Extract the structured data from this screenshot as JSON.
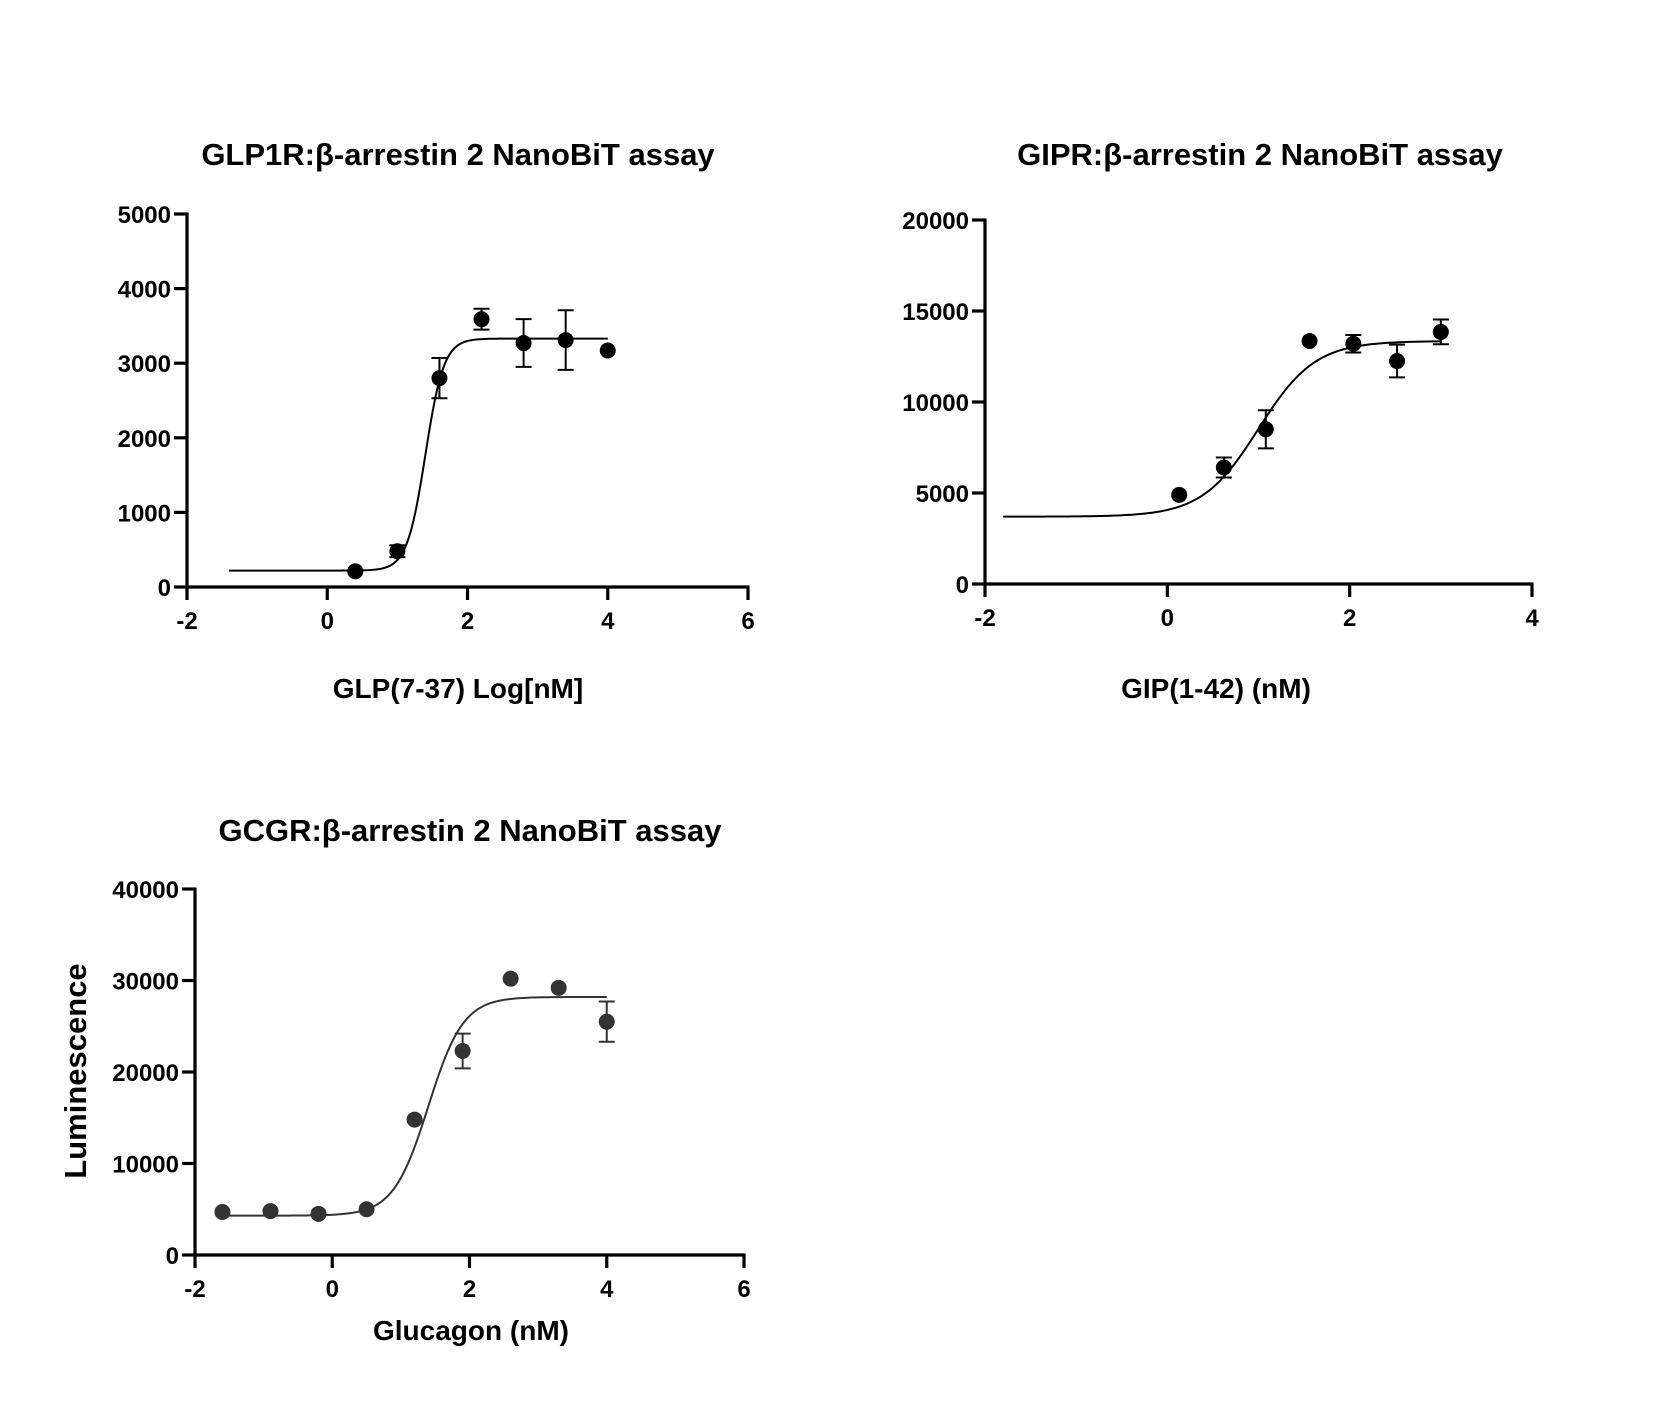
{
  "chart_data": [
    {
      "type": "scatter",
      "title": "GLP1R:β-arrestin 2 NanoBiT assay",
      "xlabel": "GLP(7-37) Log[nM]",
      "ylabel": "",
      "xlim": [
        -2,
        6
      ],
      "ylim": [
        0,
        5000
      ],
      "x_ticks": [
        "-2",
        "0",
        "2",
        "4",
        "6"
      ],
      "y_ticks": [
        "0",
        "1000",
        "2000",
        "3000",
        "4000",
        "5000"
      ],
      "color": "#000000",
      "points": [
        {
          "x": 0.4,
          "y": 210,
          "err": 0
        },
        {
          "x": 1.0,
          "y": 480,
          "err": 80
        },
        {
          "x": 1.6,
          "y": 2800,
          "err": 270
        },
        {
          "x": 2.2,
          "y": 3590,
          "err": 140
        },
        {
          "x": 2.8,
          "y": 3270,
          "err": 320
        },
        {
          "x": 3.4,
          "y": 3310,
          "err": 400
        },
        {
          "x": 4.0,
          "y": 3170,
          "err": 0
        }
      ],
      "fit": {
        "model": "sigmoid",
        "bottom": 220,
        "top": 3330,
        "ec50": 1.4,
        "hill": 3.3,
        "x_range": [
          -1.4,
          4.0
        ]
      }
    },
    {
      "type": "scatter",
      "title": "GIPR:β-arrestin 2 NanoBiT assay",
      "xlabel": "GIP(1-42) (nM)",
      "ylabel": "",
      "xlim": [
        -2,
        4
      ],
      "ylim": [
        0,
        20000
      ],
      "x_ticks": [
        "-2",
        "0",
        "2",
        "4"
      ],
      "y_ticks": [
        "0",
        "5000",
        "10000",
        "15000",
        "20000"
      ],
      "color": "#000000",
      "points": [
        {
          "x": 0.13,
          "y": 4900,
          "err": 0
        },
        {
          "x": 0.62,
          "y": 6400,
          "err": 550
        },
        {
          "x": 1.08,
          "y": 8500,
          "err": 1050
        },
        {
          "x": 1.56,
          "y": 13350,
          "err": 0
        },
        {
          "x": 2.04,
          "y": 13200,
          "err": 480
        },
        {
          "x": 2.52,
          "y": 12250,
          "err": 900
        },
        {
          "x": 3.0,
          "y": 13850,
          "err": 680
        }
      ],
      "fit": {
        "model": "sigmoid",
        "bottom": 3700,
        "top": 13350,
        "ec50": 1.0,
        "hill": 1.4,
        "x_range": [
          -1.8,
          3.0
        ]
      }
    },
    {
      "type": "scatter",
      "title": "GCGR:β-arrestin 2 NanoBiT assay",
      "xlabel": "Glucagon (nM)",
      "ylabel": "Luminescence",
      "xlim": [
        -2,
        6
      ],
      "ylim": [
        0,
        40000
      ],
      "x_ticks": [
        "-2",
        "0",
        "2",
        "4",
        "6"
      ],
      "y_ticks": [
        "0",
        "10000",
        "20000",
        "30000",
        "40000"
      ],
      "color": "#333333",
      "points": [
        {
          "x": -1.6,
          "y": 4700,
          "err": 0
        },
        {
          "x": -0.9,
          "y": 4800,
          "err": 0
        },
        {
          "x": -0.2,
          "y": 4500,
          "err": 0
        },
        {
          "x": 0.5,
          "y": 5000,
          "err": 0
        },
        {
          "x": 1.2,
          "y": 14800,
          "err": 0
        },
        {
          "x": 1.9,
          "y": 22300,
          "err": 1900
        },
        {
          "x": 2.6,
          "y": 30200,
          "err": 0
        },
        {
          "x": 3.3,
          "y": 29200,
          "err": 0
        },
        {
          "x": 4.0,
          "y": 25500,
          "err": 2200
        }
      ],
      "fit": {
        "model": "sigmoid",
        "bottom": 4300,
        "top": 28200,
        "ec50": 1.4,
        "hill": 1.7,
        "x_range": [
          -1.6,
          4.0
        ]
      }
    }
  ]
}
